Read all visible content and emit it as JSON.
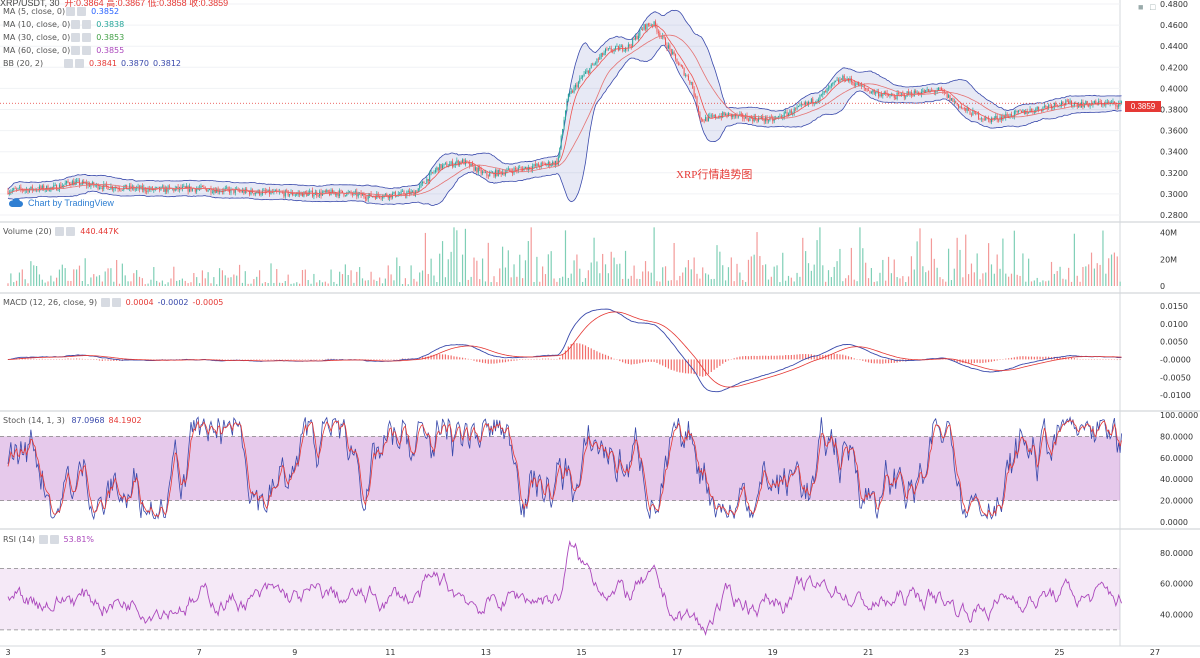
{
  "header": {
    "symbol": "XRP/USDT, 30",
    "ohlc": "开:0.3864  高:0.3867  低:0.3858  收:0.3859"
  },
  "watermark": "Chart by TradingView",
  "caption": "XRP行情趋势图",
  "last_price": "0.3859",
  "legends": {
    "ma5": {
      "name": "MA (5, close, 0)",
      "value": "0.3852",
      "color": "#2962ff"
    },
    "ma10": {
      "name": "MA (10, close, 0)",
      "value": "0.3838",
      "color": "#26a69a"
    },
    "ma30": {
      "name": "MA (30, close, 0)",
      "value": "0.3853",
      "color": "#43a047"
    },
    "ma60": {
      "name": "MA (60, close, 0)",
      "value": "0.3855",
      "color": "#ab47bc"
    },
    "bb": {
      "name": "BB (20, 2)",
      "v1": "0.3841",
      "v2": "0.3870",
      "v3": "0.3812"
    },
    "volume": {
      "name": "Volume (20)",
      "value": "440.447K"
    },
    "macd": {
      "name": "MACD (12, 26, close, 9)",
      "v1": "0.0004",
      "v2": "-0.0002",
      "v3": "-0.0005"
    },
    "stoch": {
      "name": "Stoch (14, 1, 3)",
      "v1": "87.0968",
      "v2": "84.1902"
    },
    "rsi": {
      "name": "RSI (14)",
      "value": "53.81%"
    }
  },
  "chart_data": [
    {
      "type": "candlestick",
      "title": "XRP/USDT, 30",
      "x_ticks": [
        "3",
        "5",
        "7",
        "9",
        "11",
        "13",
        "15",
        "17",
        "19",
        "21",
        "23",
        "25",
        "27"
      ],
      "y_ticks": [
        "0.4800",
        "0.4600",
        "0.4400",
        "0.4200",
        "0.4000",
        "0.3800",
        "0.3600",
        "0.3400",
        "0.3200",
        "0.3000",
        "0.2800"
      ],
      "ylim": [
        0.28,
        0.48
      ],
      "price_path": {
        "x": [
          3,
          4,
          4.3,
          5,
          6,
          7,
          8,
          9,
          10,
          10.5,
          11,
          11.5,
          12,
          12.5,
          13,
          13.5,
          14,
          14.5,
          14.7,
          15,
          15.5,
          16,
          16.3,
          16.5,
          16.8,
          17,
          17.3,
          17.5,
          18,
          18.5,
          19,
          19.5,
          20,
          20.3,
          20.5,
          21,
          21.5,
          22,
          22.5,
          23,
          23.5,
          24,
          24.5,
          25,
          25.5,
          26,
          26.3
        ],
        "y": [
          0.303,
          0.306,
          0.311,
          0.307,
          0.304,
          0.305,
          0.302,
          0.3,
          0.301,
          0.298,
          0.299,
          0.301,
          0.325,
          0.331,
          0.318,
          0.322,
          0.326,
          0.33,
          0.39,
          0.41,
          0.435,
          0.44,
          0.458,
          0.462,
          0.44,
          0.425,
          0.405,
          0.37,
          0.375,
          0.372,
          0.37,
          0.38,
          0.392,
          0.405,
          0.41,
          0.398,
          0.392,
          0.396,
          0.398,
          0.38,
          0.37,
          0.375,
          0.38,
          0.386,
          0.385,
          0.386,
          0.385
        ]
      },
      "bollinger_width_hint": 0.008
    },
    {
      "type": "bar",
      "title": "Volume (20)",
      "y_ticks": [
        "40M",
        "20M",
        "0"
      ],
      "ylim": [
        0,
        45000000
      ]
    },
    {
      "type": "line",
      "title": "MACD (12, 26, close, 9)",
      "y_ticks": [
        "0.0150",
        "0.0100",
        "0.0050",
        "-0.0000",
        "-0.0050",
        "-0.0100"
      ],
      "ylim": [
        -0.0125,
        0.0175
      ]
    },
    {
      "type": "line",
      "title": "Stoch (14, 1, 3)",
      "y_ticks": [
        "100.0000",
        "80.0000",
        "60.0000",
        "40.0000",
        "20.0000",
        "0.0000"
      ],
      "ylim": [
        0,
        100
      ],
      "bands": [
        20,
        80
      ]
    },
    {
      "type": "line",
      "title": "RSI (14)",
      "y_ticks": [
        "80.0000",
        "60.0000",
        "40.0000"
      ],
      "ylim": [
        26,
        93
      ],
      "bands": [
        30,
        70
      ]
    }
  ]
}
